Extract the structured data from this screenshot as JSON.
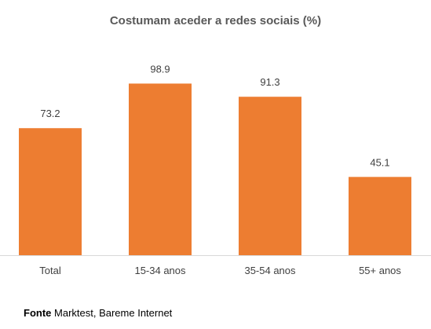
{
  "chart_data": {
    "type": "bar",
    "title": "Costumam aceder a redes sociais (%)",
    "categories": [
      "Total",
      "15-34 anos",
      "35-54 anos",
      "55+ anos"
    ],
    "values": [
      73.2,
      98.9,
      91.3,
      45.1
    ],
    "value_labels": [
      "73.2",
      "98.9",
      "91.3",
      "45.1"
    ],
    "xlabel": "",
    "ylabel": "",
    "ylim": [
      0,
      100
    ],
    "grid": false,
    "legend": "none",
    "bar_color": "#ED7D31",
    "baseline_color": "#D9D9D9"
  },
  "source": {
    "label": "Fonte",
    "text": "Marktest, Bareme Internet"
  }
}
